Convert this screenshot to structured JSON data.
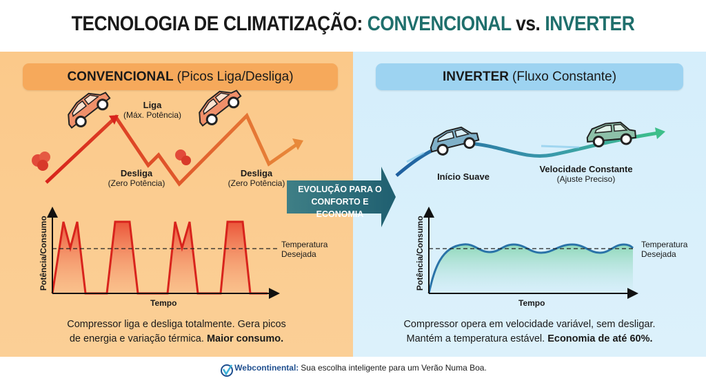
{
  "title": {
    "part1": "TECNOLOGIA DE CLIMATIZAÇÃO:",
    "part2": "CONVENCIONAL",
    "vs": "vs.",
    "part3": "INVERTER"
  },
  "left": {
    "header_bold": "CONVENCIONAL",
    "header_rest": "(Picos Liga/Desliga)",
    "liga": {
      "title": "Liga",
      "sub": "(Máx. Potência)"
    },
    "desliga1": {
      "title": "Desliga",
      "sub": "(Zero Potência)"
    },
    "desliga2": {
      "title": "Desliga",
      "sub": "(Zero Potência)"
    },
    "chart": {
      "ylabel": "Potência/Consumo",
      "xlabel": "Tempo",
      "ref_line1": "Temperatura",
      "ref_line2": "Desejada"
    },
    "desc_line1": "Compressor liga e desliga totalmente. Gera picos",
    "desc_line2": "de energia e variação térmica.",
    "desc_bold": "Maior consumo."
  },
  "arrow": {
    "line1": "EVOLUÇÃO PARA O",
    "line2": "CONFORTO E ECONOMIA"
  },
  "right": {
    "header_bold": "INVERTER",
    "header_rest": "(Fluxo Constante)",
    "inicio": "Início Suave",
    "velocidade": {
      "title": "Velocidade Constante",
      "sub": "(Ajuste Preciso)"
    },
    "chart": {
      "ylabel": "Potência/Consumo",
      "xlabel": "Tempo",
      "ref_line1": "Temperatura",
      "ref_line2": "Desejada"
    },
    "desc_line1": "Compressor opera em velocidade variável, sem desligar.",
    "desc_line2": "Mantém a temperatura estável.",
    "desc_bold": "Economia de até 60%."
  },
  "footer": {
    "brand": "Webcontinental:",
    "text": "Sua escolha inteligente para um Verão Numa Boa."
  },
  "colors": {
    "teal": "#1f6f6c",
    "red": "#d8231c",
    "orange": "#e07a2e",
    "blue": "#2a73a8"
  }
}
